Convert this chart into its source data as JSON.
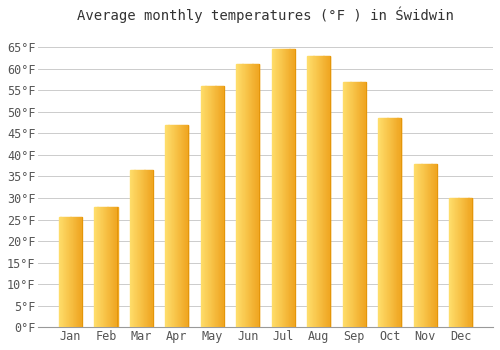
{
  "title": "Average monthly temperatures (°F ) in Świdwin",
  "months": [
    "Jan",
    "Feb",
    "Mar",
    "Apr",
    "May",
    "Jun",
    "Jul",
    "Aug",
    "Sep",
    "Oct",
    "Nov",
    "Dec"
  ],
  "values": [
    25.5,
    28.0,
    36.5,
    47.0,
    56.0,
    61.0,
    64.5,
    63.0,
    57.0,
    48.5,
    38.0,
    30.0
  ],
  "bar_color_left": "#FFD966",
  "bar_color_right": "#F0A500",
  "bar_color_mid": "#FFBB33",
  "ylim": [
    0,
    68
  ],
  "yticks": [
    0,
    5,
    10,
    15,
    20,
    25,
    30,
    35,
    40,
    45,
    50,
    55,
    60,
    65
  ],
  "ytick_labels": [
    "0°F",
    "5°F",
    "10°F",
    "15°F",
    "20°F",
    "25°F",
    "30°F",
    "35°F",
    "40°F",
    "45°F",
    "50°F",
    "55°F",
    "60°F",
    "65°F"
  ],
  "background_color": "#ffffff",
  "plot_bg_color": "#f9f9f9",
  "grid_color": "#cccccc",
  "title_fontsize": 10,
  "tick_fontsize": 8.5,
  "figsize": [
    5.0,
    3.5
  ],
  "dpi": 100
}
